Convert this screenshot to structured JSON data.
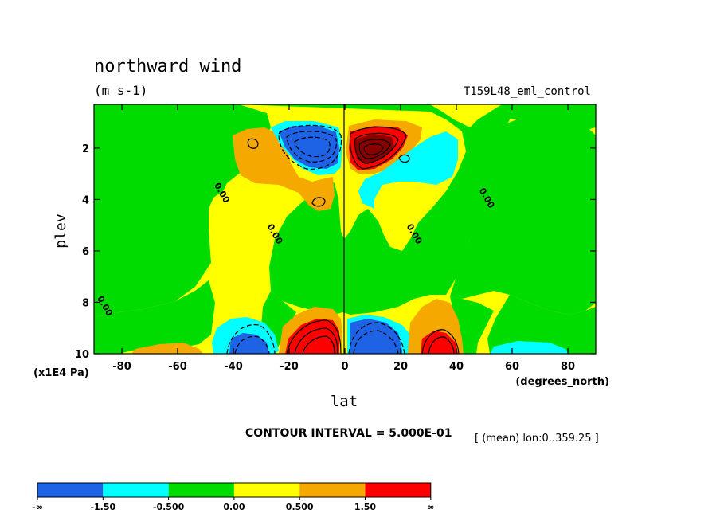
{
  "chart_data": {
    "type": "contour",
    "title": "northward wind",
    "units": "(m s-1)",
    "dataset": "T159L48_eml_control",
    "xlabel": "lat",
    "x_units": "(degrees_north)",
    "ylabel": "plev",
    "y_units": "(x1E4 Pa)",
    "xlim": [
      -90,
      90
    ],
    "ylim": [
      10,
      0.3
    ],
    "x_ticks": [
      -80,
      -60,
      -40,
      -20,
      0,
      20,
      40,
      60,
      80
    ],
    "y_ticks": [
      2,
      4,
      6,
      8,
      10
    ],
    "contour_interval_text": "CONTOUR INTERVAL = 5.000E-01",
    "mean_note": "[ (mean) lon:0..359.25 ]",
    "colorbar": {
      "labels": [
        "-∞",
        "-1.50",
        "-0.500",
        "0.00",
        "0.500",
        "1.50",
        "∞"
      ],
      "colors": [
        "#1e62e6",
        "#00ffff",
        "#00dc00",
        "#ffff00",
        "#f5a800",
        "#ff0000"
      ]
    },
    "contour_labels": [
      {
        "text": "0.00",
        "lat": -45,
        "plev": 3.8
      },
      {
        "text": "0.00",
        "lat": -26,
        "plev": 5.4
      },
      {
        "text": "0.00",
        "lat": 24,
        "plev": 5.4
      },
      {
        "text": "0.00",
        "lat": 50,
        "plev": 4.0
      },
      {
        "text": "0.00",
        "lat": -87,
        "plev": 8.2
      }
    ],
    "features": [
      {
        "name": "upper-negative-cell",
        "center": [
          -10,
          1.8
        ],
        "peak": -2.5
      },
      {
        "name": "upper-positive-cell",
        "center": [
          10,
          1.8
        ],
        "peak": 3.0
      },
      {
        "name": "lower-negative-cell-sh",
        "center": [
          -36,
          9.8
        ],
        "peak": -2.0
      },
      {
        "name": "lower-positive-cell-sh",
        "center": [
          -8,
          9.6
        ],
        "peak": 2.5
      },
      {
        "name": "lower-negative-cell-nh",
        "center": [
          10,
          9.5
        ],
        "peak": -2.0
      },
      {
        "name": "lower-positive-cell-nh",
        "center": [
          34,
          9.8
        ],
        "peak": 2.0
      }
    ]
  }
}
